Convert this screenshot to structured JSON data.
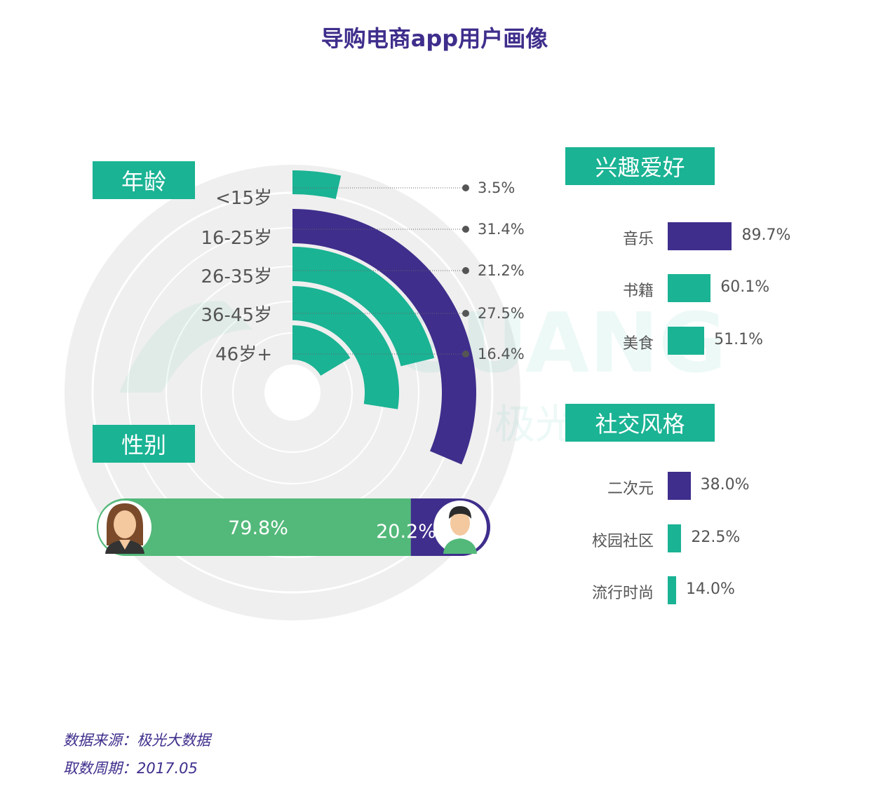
{
  "title": "导购电商app用户画像",
  "watermark": {
    "brand": "GUANG",
    "sub": "极光…服务"
  },
  "sections": {
    "age": "年龄",
    "gender": "性别",
    "hobby": "兴趣爱好",
    "style": "社交风格"
  },
  "colors": {
    "purple": "#3f2e8c",
    "teal": "#1ab394",
    "green": "#53b97a",
    "grey_ring": "#efefef"
  },
  "chart_data": [
    {
      "type": "radial-bar",
      "title": "年龄",
      "categories": [
        "<15岁",
        "16-25岁",
        "26-35岁",
        "36-45岁",
        "46岁+"
      ],
      "values": [
        3.5,
        31.4,
        21.2,
        27.5,
        16.4
      ],
      "labels": [
        "3.5%",
        "31.4%",
        "21.2%",
        "27.5%",
        "16.4%"
      ],
      "highlight": "16-25岁",
      "max": 100
    },
    {
      "type": "bar",
      "title": "性别",
      "categories": [
        "女",
        "男"
      ],
      "values": [
        79.8,
        20.2
      ],
      "labels": [
        "79.8%",
        "20.2%"
      ],
      "icons": [
        "female-avatar-icon",
        "male-avatar-icon"
      ]
    },
    {
      "type": "bar",
      "title": "兴趣爱好",
      "categories": [
        "音乐",
        "书籍",
        "美食"
      ],
      "values": [
        89.7,
        60.1,
        51.1
      ],
      "labels": [
        "89.7%",
        "60.1%",
        "51.1%"
      ]
    },
    {
      "type": "bar",
      "title": "社交风格",
      "categories": [
        "二次元",
        "校园社区",
        "流行时尚"
      ],
      "values": [
        38.0,
        22.5,
        14.0
      ],
      "labels": [
        "38.0%",
        "22.5%",
        "14.0%"
      ]
    }
  ],
  "footer": {
    "source": "数据来源：极光大数据",
    "period": "取数周期：2017.05"
  }
}
